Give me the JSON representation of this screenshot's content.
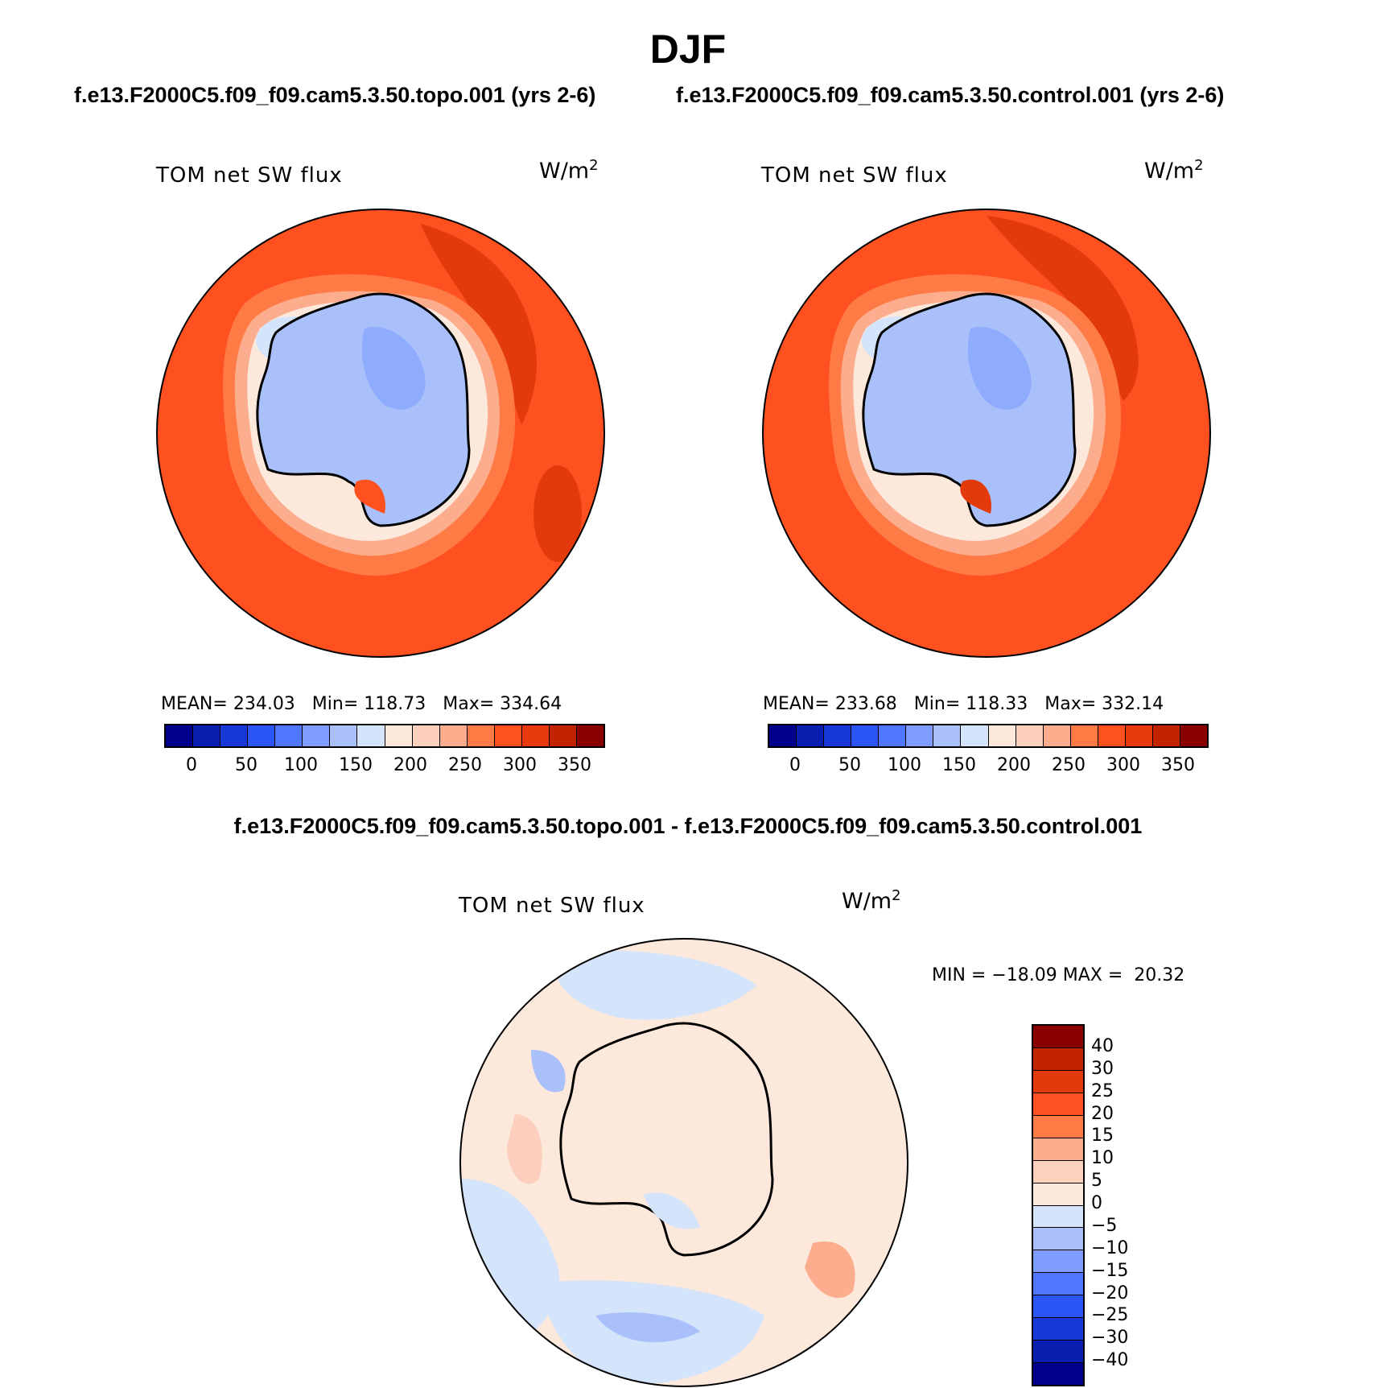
{
  "page_title": "DJF",
  "panels": {
    "left": {
      "case": "f.e13.F2000C5.f09_f09.cam5.3.50.topo.001 (yrs 2-6)",
      "variable": "TOM net SW flux",
      "units_base": "W/m",
      "units_exp": "2",
      "mean_label": "MEAN=",
      "mean": "234.03",
      "min_label": "Min=",
      "min": "118.73",
      "max_label": "Max=",
      "max": "334.64"
    },
    "right": {
      "case": "f.e13.F2000C5.f09_f09.cam5.3.50.control.001 (yrs 2-6)",
      "variable": "TOM net SW flux",
      "units_base": "W/m",
      "units_exp": "2",
      "mean_label": "MEAN=",
      "mean": "233.68",
      "min_label": "Min=",
      "min": "118.33",
      "max_label": "Max=",
      "max": "332.14"
    },
    "diff": {
      "case": "f.e13.F2000C5.f09_f09.cam5.3.50.topo.001 - f.e13.F2000C5.f09_f09.cam5.3.50.control.001",
      "variable": "TOM net SW flux",
      "units_base": "W/m",
      "units_exp": "2",
      "minmax": "MIN = −18.09 MAX =  20.32"
    }
  },
  "colorbars": {
    "absolute": {
      "colors": [
        "#00008b",
        "#0a1fb0",
        "#1838d8",
        "#2c55f5",
        "#4f77ff",
        "#7f9cff",
        "#a9c0fb",
        "#d4e4fb",
        "#fde9dc",
        "#fcd0bc",
        "#fbad8e",
        "#ff7b46",
        "#ff5020",
        "#e83a0c",
        "#c22400",
        "#8a0000"
      ],
      "tick_labels": [
        "0",
        "50",
        "100",
        "150",
        "200",
        "250",
        "300",
        "350"
      ]
    },
    "difference": {
      "colors_top_to_bottom": [
        "#8a0000",
        "#c22400",
        "#e33a0c",
        "#ff5222",
        "#ff7b46",
        "#fbad8e",
        "#fdd2bc",
        "#fde9dc",
        "#d4e4fb",
        "#a9c0fb",
        "#7f9cff",
        "#4f77ff",
        "#2c55f5",
        "#1838d8",
        "#0a1fb0",
        "#00008b"
      ],
      "tick_labels": [
        "40",
        "30",
        "25",
        "20",
        "15",
        "10",
        "5",
        "0",
        "−5",
        "−10",
        "−15",
        "−20",
        "−25",
        "−30",
        "−40"
      ]
    }
  }
}
